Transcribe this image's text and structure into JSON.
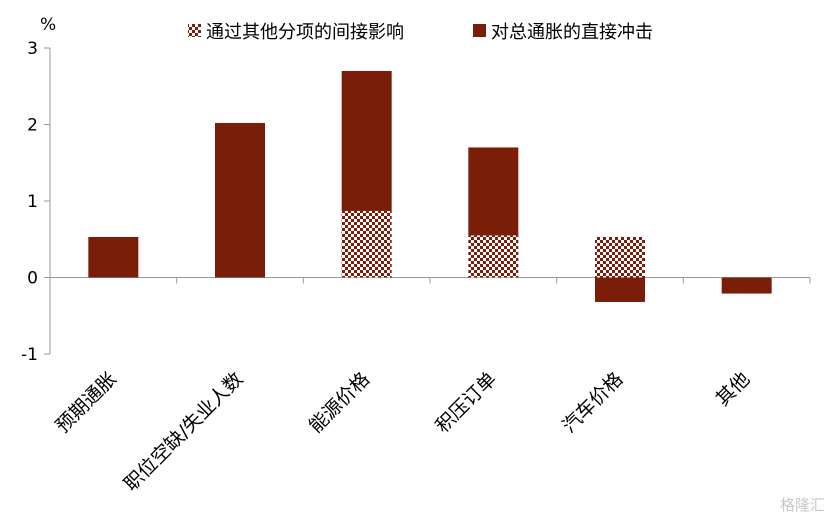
{
  "chart_data": {
    "type": "bar",
    "stacked": true,
    "unit": "%",
    "categories": [
      "预期通胀",
      "职位空缺/失业人数",
      "能源价格",
      "积压订单",
      "汽车价格",
      "其他"
    ],
    "series": [
      {
        "name": "通过其他分项的间接影响",
        "pattern": "checker",
        "color": "#7a1e0a",
        "values": [
          0,
          0,
          0.87,
          0.55,
          0.53,
          0
        ]
      },
      {
        "name": "对总通胀的直接冲击",
        "pattern": "solid",
        "color": "#7a1e0a",
        "values": [
          0.53,
          2.02,
          1.83,
          1.15,
          -0.32,
          -0.21
        ]
      }
    ],
    "ylim": [
      -1,
      3
    ],
    "yticks": [
      -1,
      0,
      1,
      2,
      3
    ],
    "legend_position": "top"
  },
  "watermark": "格隆汇"
}
